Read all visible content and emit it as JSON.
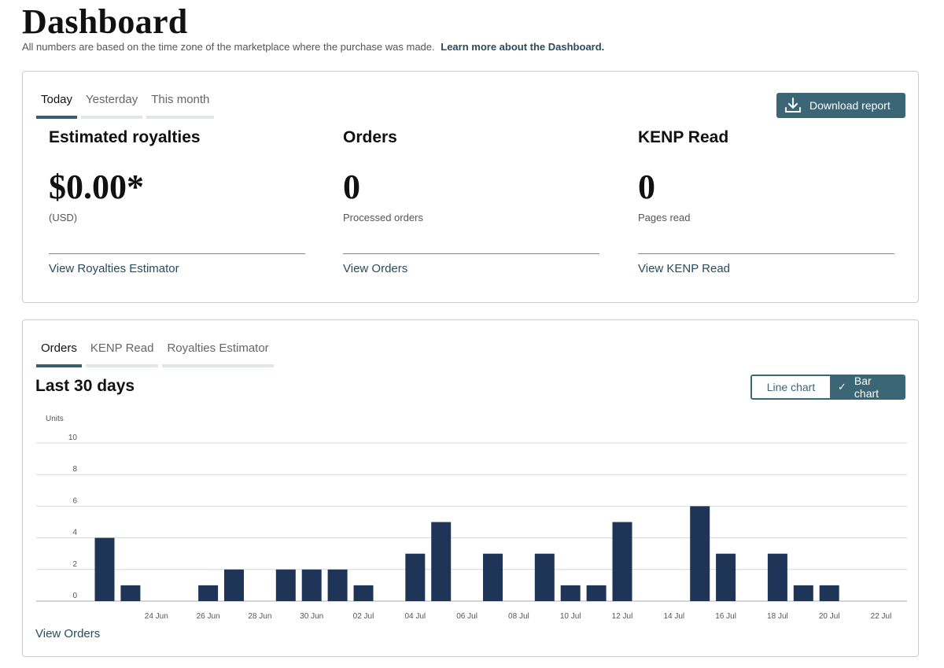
{
  "header": {
    "title": "Dashboard",
    "subtitle": "All numbers are based on the time zone of the marketplace where the purchase was made.",
    "learn_more": "Learn more about the Dashboard."
  },
  "summary": {
    "tabs": [
      "Today",
      "Yesterday",
      "This month"
    ],
    "active_tab": "Today",
    "download_label": "Download report",
    "metrics": [
      {
        "title": "Estimated royalties",
        "value": "$0.00*",
        "sub": "(USD)",
        "link": "View Royalties Estimator"
      },
      {
        "title": "Orders",
        "value": "0",
        "sub": "Processed orders",
        "link": "View Orders"
      },
      {
        "title": "KENP Read",
        "value": "0",
        "sub": "Pages read",
        "link": "View KENP Read"
      }
    ]
  },
  "chart_section": {
    "tabs": [
      "Orders",
      "KENP Read",
      "Royalties Estimator"
    ],
    "active_tab": "Orders",
    "title": "Last 30 days",
    "line_chart_label": "Line chart",
    "bar_chart_label": "Bar chart",
    "view_link": "View Orders"
  },
  "colors": {
    "bar": "#1f3558",
    "accent": "#3a6676",
    "grid": "#d5d9d9"
  },
  "chart_data": {
    "type": "bar",
    "ylabel": "Units",
    "ylim": [
      0,
      10
    ],
    "yticks": [
      0,
      2,
      4,
      6,
      8,
      10
    ],
    "grid": true,
    "categories": [
      "22 Jun",
      "23 Jun",
      "24 Jun",
      "25 Jun",
      "26 Jun",
      "27 Jun",
      "28 Jun",
      "29 Jun",
      "30 Jun",
      "01 Jul",
      "02 Jul",
      "03 Jul",
      "04 Jul",
      "05 Jul",
      "06 Jul",
      "07 Jul",
      "08 Jul",
      "09 Jul",
      "10 Jul",
      "11 Jul",
      "12 Jul",
      "13 Jul",
      "14 Jul",
      "15 Jul",
      "16 Jul",
      "17 Jul",
      "18 Jul",
      "19 Jul",
      "20 Jul",
      "21 Jul",
      "22 Jul"
    ],
    "tick_labels": [
      "24 Jun",
      "26 Jun",
      "28 Jun",
      "30 Jun",
      "02 Jul",
      "04 Jul",
      "06 Jul",
      "08 Jul",
      "10 Jul",
      "12 Jul",
      "14 Jul",
      "16 Jul",
      "18 Jul",
      "20 Jul",
      "22 Jul"
    ],
    "values": [
      4,
      1,
      0,
      0,
      1,
      2,
      0,
      2,
      2,
      2,
      1,
      0,
      3,
      5,
      0,
      3,
      0,
      3,
      1,
      1,
      5,
      0,
      0,
      6,
      3,
      0,
      3,
      1,
      1,
      0,
      0
    ]
  }
}
